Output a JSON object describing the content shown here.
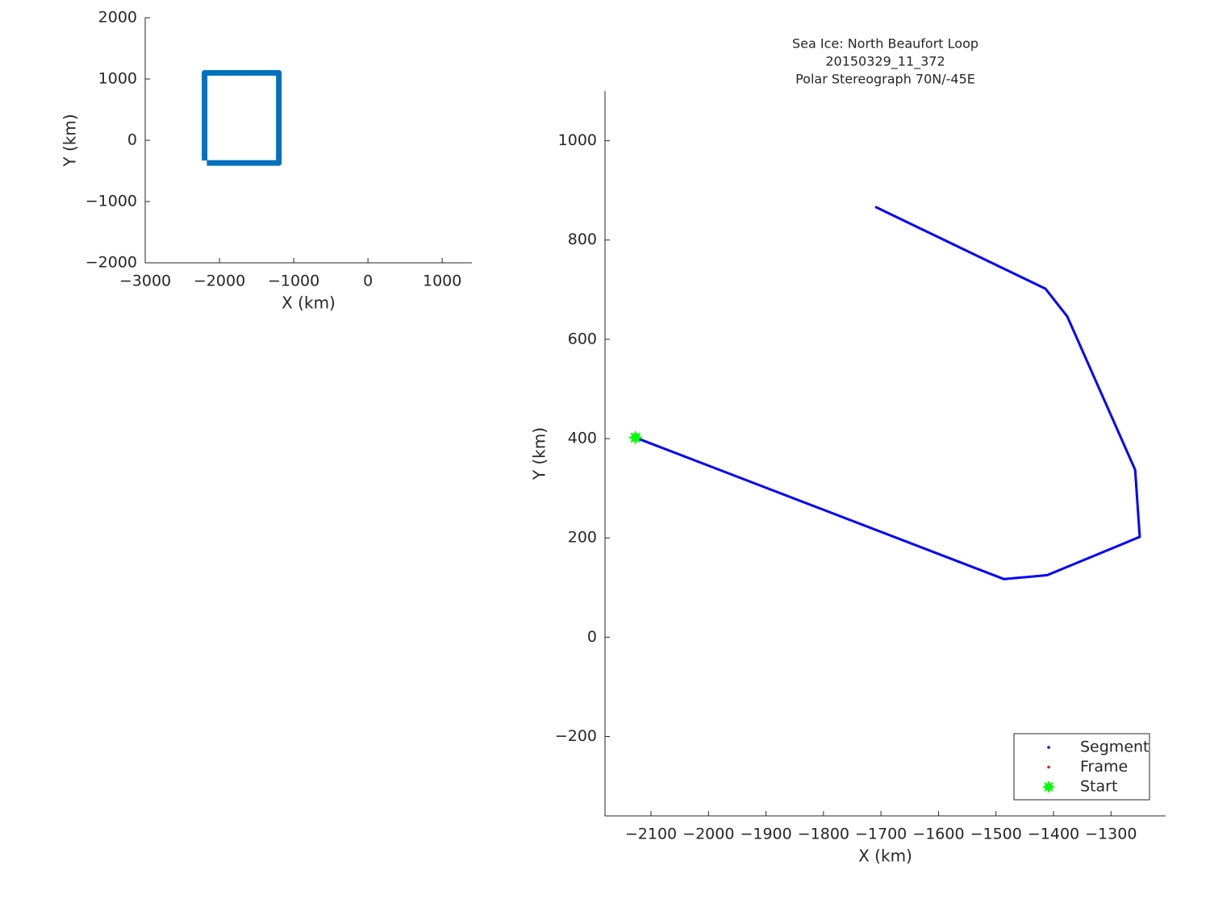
{
  "chart_data": [
    {
      "type": "line",
      "xlabel": "X (km)",
      "ylabel": "Y (km)",
      "xlim": [
        -3000,
        1400
      ],
      "ylim": [
        -2000,
        2000
      ],
      "xticks": [
        {
          "value": -3000,
          "label": "−3000"
        },
        {
          "value": -2000,
          "label": "−2000"
        },
        {
          "value": -1000,
          "label": "−1000"
        },
        0,
        1000
      ],
      "yticks": [
        {
          "value": -2000,
          "label": "−2000"
        },
        {
          "value": -1000,
          "label": "−1000"
        },
        0,
        1000,
        2000
      ],
      "series": [
        {
          "color": "#0072bd",
          "x": [
            -2170,
            -1200,
            -1200,
            -2200,
            -2200
          ],
          "values": [
            -370,
            -370,
            1100,
            1100,
            -330
          ]
        }
      ]
    },
    {
      "type": "line",
      "title": [
        "Sea Ice: North Beaufort Loop",
        "20150329_11_372",
        "Polar Stereograph 70N/-45E"
      ],
      "xlabel": "X (km)",
      "ylabel": "Y (km)",
      "xlim": [
        -2180,
        -1205
      ],
      "ylim": [
        -360,
        1100
      ],
      "xticks": [
        {
          "value": -2100,
          "label": "−2100"
        },
        {
          "value": -2000,
          "label": "−2000"
        },
        {
          "value": -1900,
          "label": "−1900"
        },
        {
          "value": -1800,
          "label": "−1800"
        },
        {
          "value": -1700,
          "label": "−1700"
        },
        {
          "value": -1600,
          "label": "−1600"
        },
        {
          "value": -1500,
          "label": "−1500"
        },
        {
          "value": -1400,
          "label": "−1400"
        },
        {
          "value": -1300,
          "label": "−1300"
        }
      ],
      "yticks": [
        {
          "value": -200,
          "label": "−200"
        },
        0,
        200,
        400,
        600,
        800,
        1000
      ],
      "legend": "lower right",
      "series": [
        {
          "name": "Segment",
          "color": "#0000ff",
          "marker": "dot",
          "x": [
            -2127,
            -1486,
            -1411,
            -1250,
            -1258,
            -1376,
            -1414,
            -1710
          ],
          "values": [
            402,
            117,
            125,
            202,
            337,
            646,
            702,
            867
          ]
        },
        {
          "name": "Frame",
          "color": "#ff0000",
          "marker": "dot",
          "x": [],
          "values": []
        },
        {
          "name": "Start",
          "color": "#00ff00",
          "marker": "star",
          "x": [
            -2127
          ],
          "values": [
            402
          ]
        }
      ]
    }
  ]
}
